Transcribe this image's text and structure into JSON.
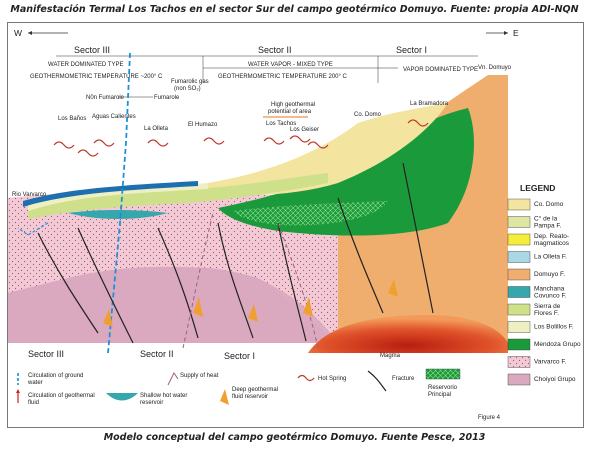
{
  "captions": {
    "top": "Manifestación Termal Los Tachos en el sector Sur del campo geotérmico Domuyo. Fuente: propia ADI-NQN",
    "bottom": "Modelo conceptual del campo geotérmico Domuyo. Fuente Pesce, 2013"
  },
  "compass": {
    "west": "W",
    "east": "E"
  },
  "sectors_top": [
    "Sector III",
    "Sector II",
    "Sector I"
  ],
  "sectors_bottom": [
    "Sector III",
    "Sector II",
    "Sector I"
  ],
  "zones": {
    "s3_type": "WATER DOMINATED TYPE",
    "s3_temp": "GEOTHERMOMETRIC TEMPERATURE ~200° C",
    "s2_type": "WATER VAPOR - MIXED TYPE",
    "s2_temp": "GEOTHERMOMETRIC TEMPERATURE  200° C",
    "s1_type": "VAPOR DOMINATED TYPE"
  },
  "places": {
    "fumarolic_gas": "Fumarolic gas",
    "non_so2": "(non SO₂)",
    "non_fumarole": "N0n Fumarole",
    "fumarole": "Fumarole",
    "los_banos": "Los Baños",
    "aguas_calientes": "Aguas Calientes",
    "la_olleta": "La Olleta",
    "el_humazo": "El Humazo",
    "high_geo_1": "High geothermal",
    "high_geo_2": "potential of area",
    "los_tachos": "Los Tachos",
    "los_geiser": "Los Geiser",
    "co_domo": "Co. Domo",
    "la_bramadora": "La Bramadora",
    "vn_domuyo": "Vn. Domuyo",
    "rio_varvarco": "Rio Varvarco",
    "magma": "Magma"
  },
  "legend": {
    "title": "LEGEND",
    "items": [
      {
        "lines": [
          "Co. Domo"
        ],
        "color": "#f3e4a0",
        "pattern": "none"
      },
      {
        "lines": [
          "C° de la",
          "Pampa F."
        ],
        "color": "#dde7a3",
        "pattern": "none"
      },
      {
        "lines": [
          "Dep. Reato-",
          "magmaticos"
        ],
        "color": "#f4ee3a",
        "pattern": "none"
      },
      {
        "lines": [
          "La Olleta F."
        ],
        "color": "#a9d7e2",
        "pattern": "none"
      },
      {
        "lines": [
          "Domuyo F."
        ],
        "color": "#f0ae6e",
        "pattern": "none"
      },
      {
        "lines": [
          "Manchana",
          "Covunco F."
        ],
        "color": "#36a7ad",
        "pattern": "none"
      },
      {
        "lines": [
          "Sierra de",
          "Flores F."
        ],
        "color": "#cfe08a",
        "pattern": "none"
      },
      {
        "lines": [
          "Los Bolillos F."
        ],
        "color": "#eef0c4",
        "pattern": "none"
      },
      {
        "lines": [
          "Mendoza Grupo"
        ],
        "color": "#1b9a3c",
        "pattern": "none"
      },
      {
        "lines": [
          "Varvarco F."
        ],
        "color": "#f2c9d4",
        "pattern": "dots"
      },
      {
        "lines": [
          "Choiyoi Grupo"
        ],
        "color": "#d9a9bf",
        "pattern": "none"
      }
    ]
  },
  "bottom_legend": {
    "circ_ground_1": "Circulation of ground",
    "circ_ground_2": "water",
    "circ_geo_1": "Circulation of geothermal",
    "circ_geo_2": "fluid",
    "shallow_1": "Shallow hot water",
    "shallow_2": "reservoir",
    "heat": "Supply of heat",
    "deep_1": "Deep geothermal",
    "deep_2": "fluid reservoir",
    "hot_spring": "Hot Spring",
    "fracture": "Fracture",
    "reservorio_1": "Reservorio",
    "reservorio_2": "Principal"
  },
  "figure_label": "Figure 4",
  "colors": {
    "choiyoi": "#d9a9bf",
    "varvarco": "#f2c9d4",
    "mendoza": "#1b9a3c",
    "domuyo": "#f0ae6e",
    "codomo": "#f3e4a0",
    "magma": "#e0522a",
    "olleta": "#a9d7e2",
    "manchana": "#36a7ad",
    "groundwater": "#1e90d8"
  }
}
